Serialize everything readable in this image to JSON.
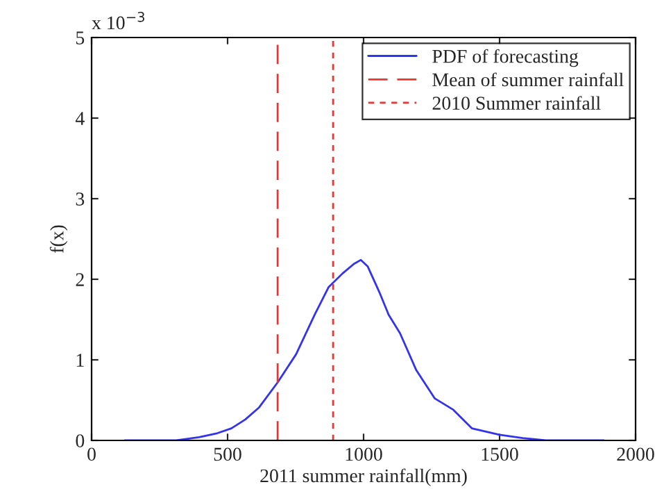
{
  "chart_data": {
    "type": "line",
    "xlabel": "2011 summer rainfall(mm)",
    "ylabel": "f(x)",
    "annotations": [
      "x 10$^{−3}$"
    ],
    "series": [
      {
        "name": "PDF of forecasting",
        "color": "#3333ee",
        "line_style": "solid",
        "x": [
          122,
          310,
          395,
          463,
          514,
          565,
          616,
          684,
          752,
          820,
          871,
          922,
          964,
          990,
          1015,
          1058,
          1092,
          1134,
          1194,
          1262,
          1330,
          1398,
          1500,
          1585,
          1670,
          1883
        ],
        "values": [
          0,
          0,
          0.04,
          0.09,
          0.15,
          0.26,
          0.41,
          0.72,
          1.07,
          1.56,
          1.9,
          2.07,
          2.19,
          2.24,
          2.16,
          1.84,
          1.56,
          1.33,
          0.87,
          0.52,
          0.38,
          0.15,
          0.07,
          0.03,
          0,
          0
        ]
      },
      {
        "name": "Mean of summer rainfall",
        "color": "#ee3333",
        "line_style": "dashed",
        "x": [
          684,
          684
        ],
        "values": [
          0,
          5
        ]
      },
      {
        "name": "2010 Summer rainfall",
        "color": "#ee3333",
        "line_style": "dotted",
        "x": [
          888,
          888
        ],
        "values": [
          0,
          5
        ]
      }
    ],
    "xlim": [
      0,
      2000
    ],
    "xticks": [
      0,
      500,
      1000,
      1500,
      2000
    ],
    "ylim": [
      0,
      5
    ],
    "yticks": [
      0,
      1,
      2,
      3,
      4,
      5
    ],
    "grid": false,
    "legend": "top right"
  }
}
